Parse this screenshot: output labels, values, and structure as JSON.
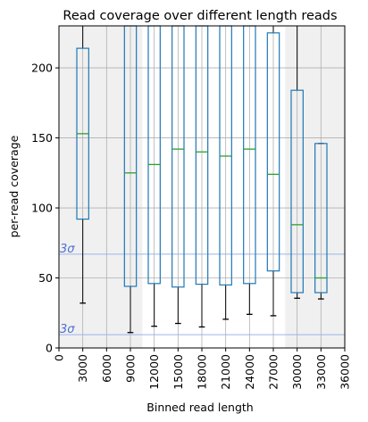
{
  "chart_data": {
    "type": "box",
    "title": "Read coverage over different length reads",
    "xlabel": "Binned read length",
    "ylabel": "per-read coverage",
    "xlim": [
      0,
      36000
    ],
    "ylim": [
      0,
      230
    ],
    "xticks": [
      0,
      3000,
      6000,
      9000,
      12000,
      15000,
      18000,
      21000,
      24000,
      27000,
      30000,
      33000,
      36000
    ],
    "yticks": [
      0,
      50,
      100,
      150,
      200
    ],
    "grid": true,
    "shaded_regions": [
      {
        "x_from": 0,
        "x_to": 10500,
        "color": "#f0f0f0"
      },
      {
        "x_from": 28500,
        "x_to": 36000,
        "color": "#f0f0f0"
      }
    ],
    "reference_lines": [
      {
        "y": 67,
        "label": "3σ",
        "color": "#9db3e8"
      },
      {
        "y": 9.5,
        "label": "3σ",
        "color": "#9db3e8"
      }
    ],
    "box_color": "#1f77b4",
    "median_color": "#2ca02c",
    "boxes": [
      {
        "x": 3000,
        "whislo": 32,
        "q1": 92,
        "median": 153,
        "q3": 214,
        "whishi": 230
      },
      {
        "x": 9000,
        "whislo": 11,
        "q1": 44,
        "median": 125,
        "q3": 230,
        "whishi": 230
      },
      {
        "x": 12000,
        "whislo": 15.5,
        "q1": 46,
        "median": 131,
        "q3": 230,
        "whishi": 230
      },
      {
        "x": 15000,
        "whislo": 17.5,
        "q1": 43.5,
        "median": 142,
        "q3": 230,
        "whishi": 230
      },
      {
        "x": 18000,
        "whislo": 15,
        "q1": 45.5,
        "median": 140,
        "q3": 230,
        "whishi": 230
      },
      {
        "x": 21000,
        "whislo": 20.5,
        "q1": 45,
        "median": 137,
        "q3": 230,
        "whishi": 230
      },
      {
        "x": 24000,
        "whislo": 24,
        "q1": 46,
        "median": 142,
        "q3": 230,
        "whishi": 230
      },
      {
        "x": 27000,
        "whislo": 23,
        "q1": 55,
        "median": 124,
        "q3": 225,
        "whishi": 230
      },
      {
        "x": 30000,
        "whislo": 35.5,
        "q1": 39.5,
        "median": 88,
        "q3": 184,
        "whishi": 230
      },
      {
        "x": 33000,
        "whislo": 35,
        "q1": 39.5,
        "median": 50,
        "q3": 146,
        "whishi": 146
      }
    ]
  }
}
